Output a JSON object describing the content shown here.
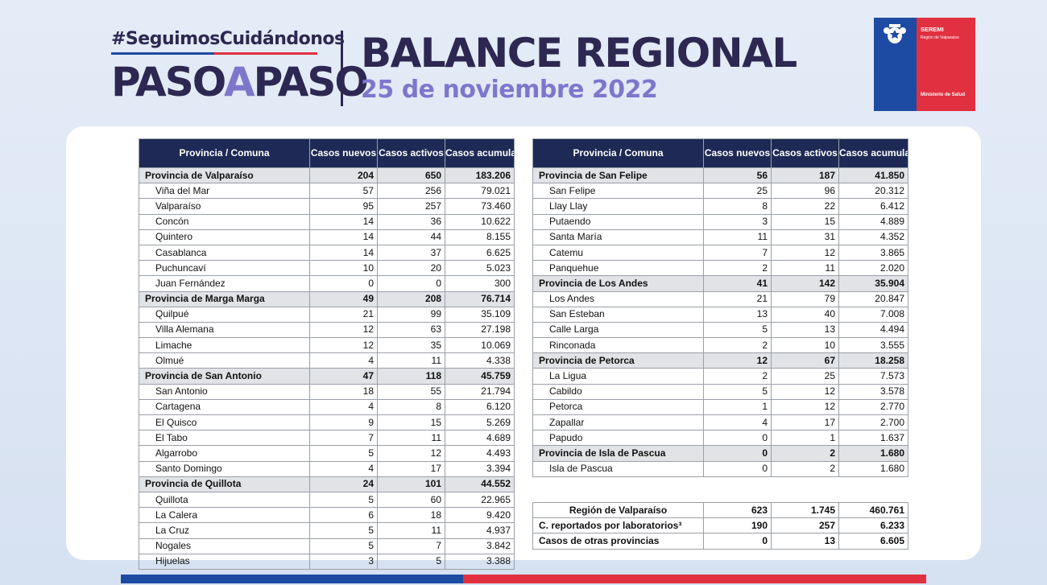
{
  "header": {
    "hashtag": "#SeguimosCuidándonos",
    "logo_paso1": "PASO",
    "logo_a": "A",
    "logo_paso2": "PASO",
    "title": "BALANCE REGIONAL",
    "date": "25 de noviembre 2022"
  },
  "seremi": {
    "title": "SEREMI",
    "subtitle": "Región de Valparaíso",
    "ministry": "Ministerio de Salud",
    "colors": {
      "blue": "#1d4aa3",
      "red": "#e13040"
    }
  },
  "columns": [
    "Provincia / Comuna",
    "Casos nuevos",
    "Casos activos",
    "Casos acumulados"
  ],
  "left_table": [
    {
      "type": "prov",
      "name": "Provincia de Valparaíso",
      "nuevos": "204",
      "activos": "650",
      "acumulados": "183.206"
    },
    {
      "type": "com",
      "name": "Viña del Mar",
      "nuevos": "57",
      "activos": "256",
      "acumulados": "79.021"
    },
    {
      "type": "com",
      "name": "Valparaíso",
      "nuevos": "95",
      "activos": "257",
      "acumulados": "73.460"
    },
    {
      "type": "com",
      "name": "Concón",
      "nuevos": "14",
      "activos": "36",
      "acumulados": "10.622"
    },
    {
      "type": "com",
      "name": "Quintero",
      "nuevos": "14",
      "activos": "44",
      "acumulados": "8.155"
    },
    {
      "type": "com",
      "name": "Casablanca",
      "nuevos": "14",
      "activos": "37",
      "acumulados": "6.625"
    },
    {
      "type": "com",
      "name": "Puchuncaví",
      "nuevos": "10",
      "activos": "20",
      "acumulados": "5.023"
    },
    {
      "type": "com",
      "name": "Juan Fernández",
      "nuevos": "0",
      "activos": "0",
      "acumulados": "300"
    },
    {
      "type": "prov",
      "name": "Provincia de Marga Marga",
      "nuevos": "49",
      "activos": "208",
      "acumulados": "76.714"
    },
    {
      "type": "com",
      "name": "Quilpué",
      "nuevos": "21",
      "activos": "99",
      "acumulados": "35.109"
    },
    {
      "type": "com",
      "name": "Villa Alemana",
      "nuevos": "12",
      "activos": "63",
      "acumulados": "27.198"
    },
    {
      "type": "com",
      "name": "Limache",
      "nuevos": "12",
      "activos": "35",
      "acumulados": "10.069"
    },
    {
      "type": "com",
      "name": "Olmué",
      "nuevos": "4",
      "activos": "11",
      "acumulados": "4.338"
    },
    {
      "type": "prov",
      "name": "Provincia de San Antonio",
      "nuevos": "47",
      "activos": "118",
      "acumulados": "45.759"
    },
    {
      "type": "com",
      "name": "San Antonio",
      "nuevos": "18",
      "activos": "55",
      "acumulados": "21.794"
    },
    {
      "type": "com",
      "name": "Cartagena",
      "nuevos": "4",
      "activos": "8",
      "acumulados": "6.120"
    },
    {
      "type": "com",
      "name": "El Quisco",
      "nuevos": "9",
      "activos": "15",
      "acumulados": "5.269"
    },
    {
      "type": "com",
      "name": "El Tabo",
      "nuevos": "7",
      "activos": "11",
      "acumulados": "4.689"
    },
    {
      "type": "com",
      "name": "Algarrobo",
      "nuevos": "5",
      "activos": "12",
      "acumulados": "4.493"
    },
    {
      "type": "com",
      "name": "Santo Domingo",
      "nuevos": "4",
      "activos": "17",
      "acumulados": "3.394"
    },
    {
      "type": "prov",
      "name": "Provincia de Quillota",
      "nuevos": "24",
      "activos": "101",
      "acumulados": "44.552"
    },
    {
      "type": "com",
      "name": "Quillota",
      "nuevos": "5",
      "activos": "60",
      "acumulados": "22.965"
    },
    {
      "type": "com",
      "name": "La Calera",
      "nuevos": "6",
      "activos": "18",
      "acumulados": "9.420"
    },
    {
      "type": "com",
      "name": "La Cruz",
      "nuevos": "5",
      "activos": "11",
      "acumulados": "4.937"
    },
    {
      "type": "com",
      "name": "Nogales",
      "nuevos": "5",
      "activos": "7",
      "acumulados": "3.842"
    },
    {
      "type": "com",
      "name": "Hijuelas",
      "nuevos": "3",
      "activos": "5",
      "acumulados": "3.388"
    }
  ],
  "right_table": [
    {
      "type": "prov",
      "name": "Provincia de San Felipe",
      "nuevos": "56",
      "activos": "187",
      "acumulados": "41.850"
    },
    {
      "type": "com",
      "name": "San Felipe",
      "nuevos": "25",
      "activos": "96",
      "acumulados": "20.312"
    },
    {
      "type": "com",
      "name": "Llay Llay",
      "nuevos": "8",
      "activos": "22",
      "acumulados": "6.412"
    },
    {
      "type": "com",
      "name": "Putaendo",
      "nuevos": "3",
      "activos": "15",
      "acumulados": "4.889"
    },
    {
      "type": "com",
      "name": "Santa María",
      "nuevos": "11",
      "activos": "31",
      "acumulados": "4.352"
    },
    {
      "type": "com",
      "name": "Catemu",
      "nuevos": "7",
      "activos": "12",
      "acumulados": "3.865"
    },
    {
      "type": "com",
      "name": "Panquehue",
      "nuevos": "2",
      "activos": "11",
      "acumulados": "2.020"
    },
    {
      "type": "prov",
      "name": "Provincia de Los Andes",
      "nuevos": "41",
      "activos": "142",
      "acumulados": "35.904"
    },
    {
      "type": "com",
      "name": "Los Andes",
      "nuevos": "21",
      "activos": "79",
      "acumulados": "20.847"
    },
    {
      "type": "com",
      "name": "San Esteban",
      "nuevos": "13",
      "activos": "40",
      "acumulados": "7.008"
    },
    {
      "type": "com",
      "name": "Calle Larga",
      "nuevos": "5",
      "activos": "13",
      "acumulados": "4.494"
    },
    {
      "type": "com",
      "name": "Rinconada",
      "nuevos": "2",
      "activos": "10",
      "acumulados": "3.555"
    },
    {
      "type": "prov",
      "name": "Provincia de Petorca",
      "nuevos": "12",
      "activos": "67",
      "acumulados": "18.258"
    },
    {
      "type": "com",
      "name": "La Ligua",
      "nuevos": "2",
      "activos": "25",
      "acumulados": "7.573"
    },
    {
      "type": "com",
      "name": "Cabildo",
      "nuevos": "5",
      "activos": "12",
      "acumulados": "3.578"
    },
    {
      "type": "com",
      "name": "Petorca",
      "nuevos": "1",
      "activos": "12",
      "acumulados": "2.770"
    },
    {
      "type": "com",
      "name": "Zapallar",
      "nuevos": "4",
      "activos": "17",
      "acumulados": "2.700"
    },
    {
      "type": "com",
      "name": "Papudo",
      "nuevos": "0",
      "activos": "1",
      "acumulados": "1.637"
    },
    {
      "type": "prov",
      "name": "Provincia de Isla de Pascua",
      "nuevos": "0",
      "activos": "2",
      "acumulados": "1.680"
    },
    {
      "type": "com",
      "name": "Isla de Pascua",
      "nuevos": "0",
      "activos": "2",
      "acumulados": "1.680"
    }
  ],
  "summary": [
    {
      "name": "Región de Valparaíso",
      "nuevos": "623",
      "activos": "1.745",
      "acumulados": "460.761",
      "center": true
    },
    {
      "name": "C. reportados por laboratorios³",
      "nuevos": "190",
      "activos": "257",
      "acumulados": "6.233",
      "center": false
    },
    {
      "name": "Casos de otras provincias",
      "nuevos": "0",
      "activos": "13",
      "acumulados": "6.605",
      "center": false
    }
  ]
}
